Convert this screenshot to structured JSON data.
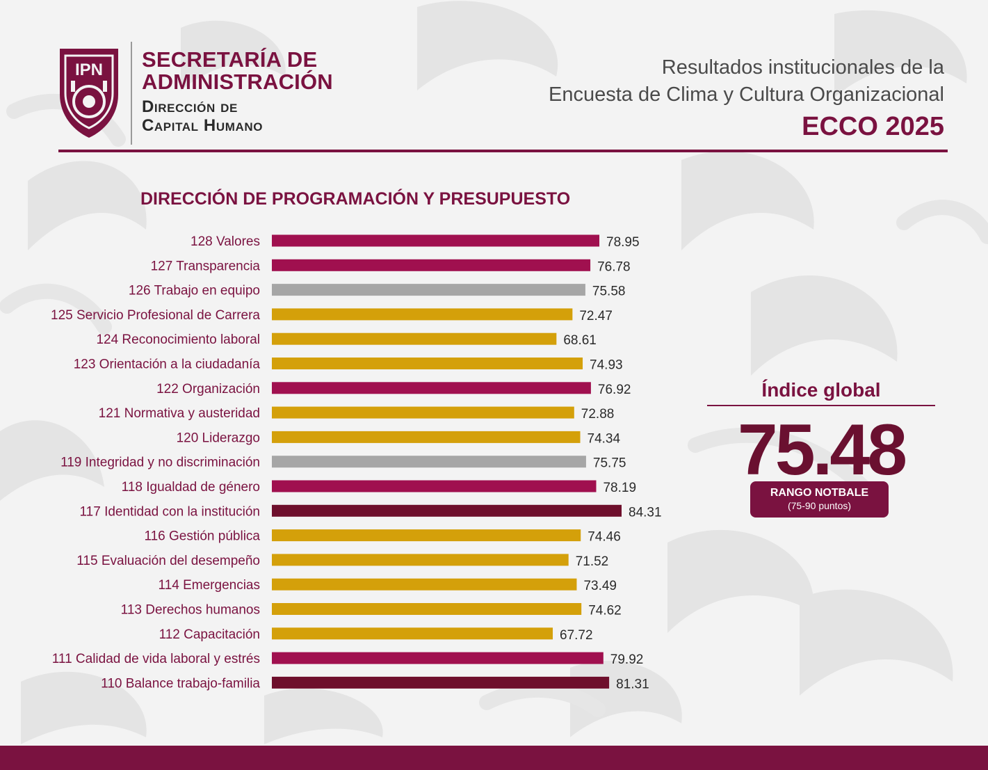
{
  "header": {
    "logo": {
      "text": "IPN",
      "icon": "ipn-shield-icon"
    },
    "org_line1": "SECRETARÍA DE",
    "org_line2": "ADMINISTRACIÓN",
    "org_line3": "Dirección de",
    "org_line4": "Capital Humano",
    "title_line1": "Resultados institucionales de la",
    "title_line2": "Encuesta de Clima y Cultura Organizacional",
    "title_line3": "ECCO 2025"
  },
  "colors": {
    "maroon": "#7a1240",
    "magenta": "#a0104f",
    "dark_maroon": "#6e0f2c",
    "gold": "#d4a00a",
    "gray": "#a6a6a6"
  },
  "chart_data": {
    "type": "bar",
    "orientation": "horizontal",
    "title": "DIRECCIÓN DE PROGRAMACIÓN Y PRESUPUESTO",
    "categories": [
      "128 Valores",
      "127 Transparencia",
      "126 Trabajo en equipo",
      "125 Servicio Profesional de Carrera",
      "124 Reconocimiento laboral",
      "123 Orientación a la ciudadanía",
      "122 Organización",
      "121 Normativa y austeridad",
      "120 Liderazgo",
      "119 Integridad y no discriminación",
      "118 Igualdad de género",
      "117 Identidad con la institución",
      "116 Gestión pública",
      "115 Evaluación del desempeño",
      "114 Emergencias",
      "113 Derechos humanos",
      "112 Capacitación",
      "111 Calidad de vida laboral y estrés",
      "110 Balance trabajo-familia"
    ],
    "values": [
      78.95,
      76.78,
      75.58,
      72.47,
      68.61,
      74.93,
      76.92,
      72.88,
      74.34,
      75.75,
      78.19,
      84.31,
      74.46,
      71.52,
      73.49,
      74.62,
      67.72,
      79.92,
      81.31
    ],
    "value_labels": [
      "78.95",
      "76.78",
      "75.58",
      "72.47",
      "68.61",
      "74.93",
      "76.92",
      "72.88",
      "74.34",
      "75.75",
      "78.19",
      "84.31",
      "74.46",
      "71.52",
      "73.49",
      "74.62",
      "67.72",
      "79.92",
      "81.31"
    ],
    "bar_colors": [
      "#a0104f",
      "#a0104f",
      "#a6a6a6",
      "#d4a00a",
      "#d4a00a",
      "#d4a00a",
      "#a0104f",
      "#d4a00a",
      "#d4a00a",
      "#a6a6a6",
      "#a0104f",
      "#6e0f2c",
      "#d4a00a",
      "#d4a00a",
      "#d4a00a",
      "#d4a00a",
      "#d4a00a",
      "#a0104f",
      "#6e0f2c"
    ],
    "xlim": [
      0,
      84.31
    ],
    "grid": false,
    "legend": "none"
  },
  "index": {
    "title": "Índice global",
    "value": "75.48",
    "range_label": "RANGO NOTBALE",
    "range_sub": "(75-90 puntos)"
  }
}
